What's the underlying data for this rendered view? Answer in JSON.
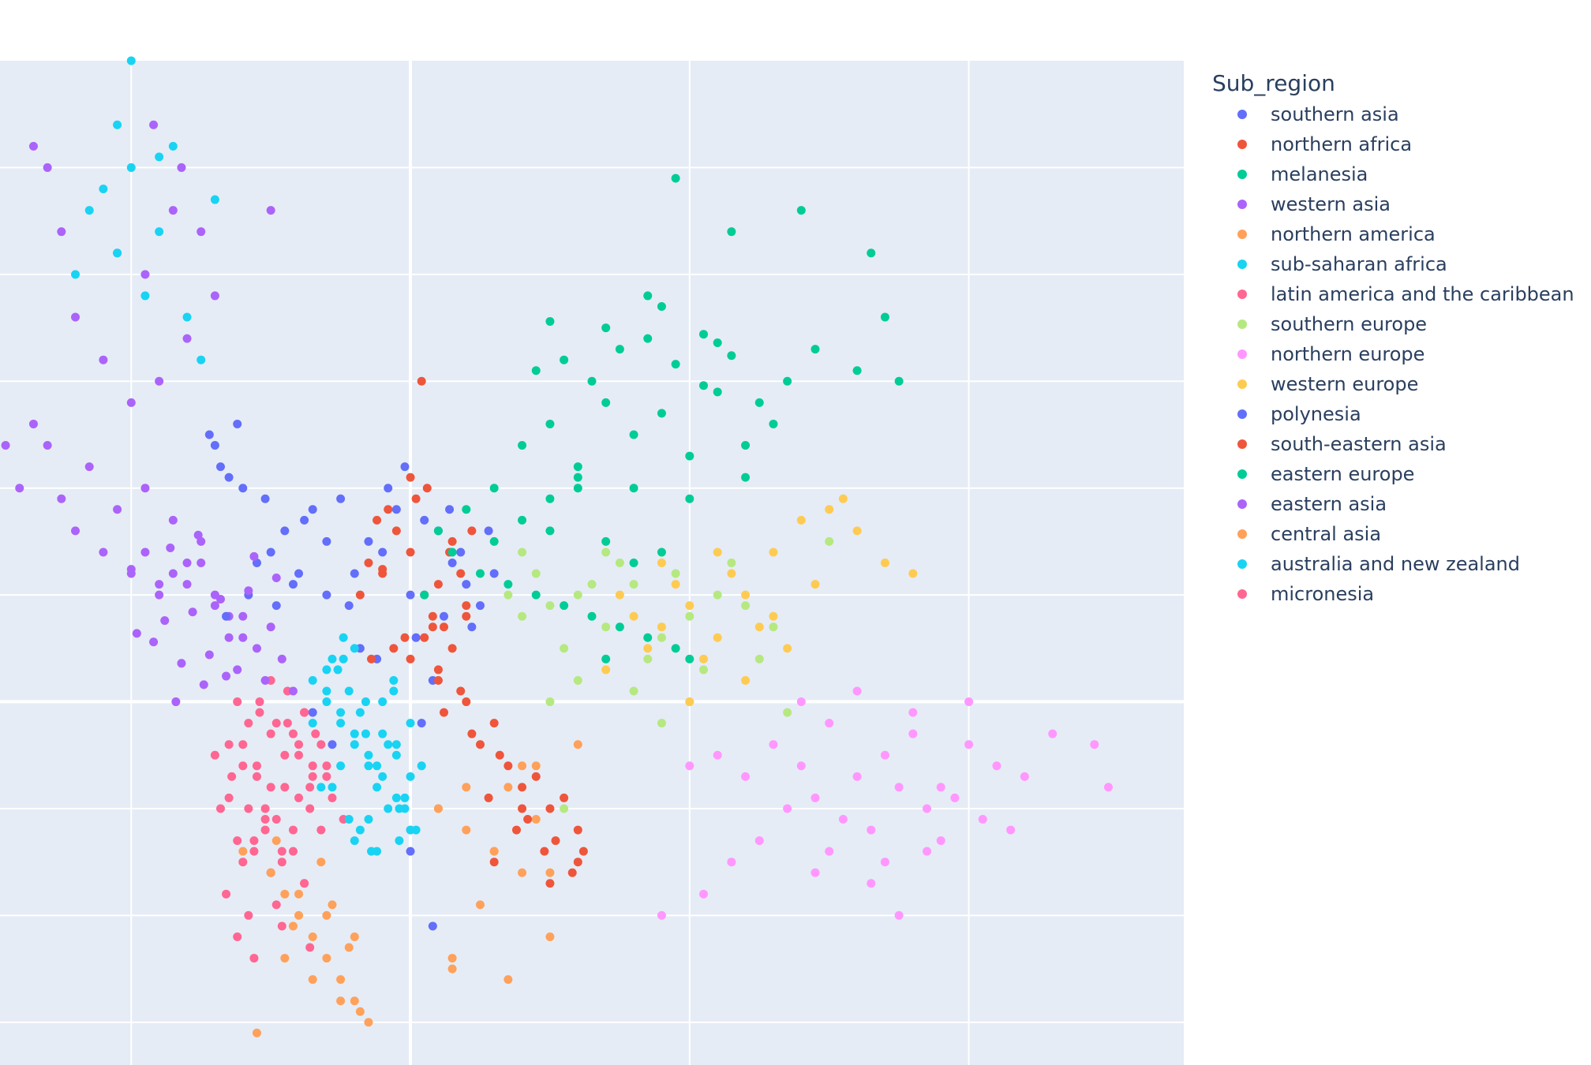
{
  "chart_data": {
    "type": "scatter",
    "title": "",
    "xlabel": "",
    "ylabel": "",
    "grid": true,
    "legend": {
      "title": "Sub_region",
      "placement": "right"
    },
    "xlim": [
      -1.47,
      2.77
    ],
    "ylim": [
      -1.7,
      3.0
    ],
    "series": [
      {
        "name": "southern asia",
        "color": "#636efa",
        "x": [
          -0.2,
          -0.1,
          0.0,
          0.1,
          -0.05,
          0.15,
          0.2,
          -0.15,
          0.05,
          0.25,
          -0.25,
          0.3,
          0.12,
          -0.08,
          0.18,
          -0.3,
          0.02,
          0.22,
          -0.12,
          0.08,
          -0.22,
          0.28,
          -0.02,
          0.14,
          -0.18,
          0.04,
          -0.35,
          -0.28,
          0.0,
          0.08
        ],
        "y": [
          0.6,
          0.7,
          0.5,
          0.8,
          0.9,
          0.65,
          0.55,
          0.75,
          0.85,
          0.45,
          0.95,
          0.6,
          0.4,
          1.0,
          0.7,
          0.5,
          0.3,
          0.35,
          0.2,
          0.1,
          0.45,
          0.8,
          1.1,
          0.9,
          0.25,
          -0.1,
          -0.05,
          -0.2,
          -0.7,
          -1.05
        ]
      },
      {
        "name": "northern africa",
        "color": "#ef553b",
        "x": [
          -0.1,
          0.0,
          0.05,
          -0.05,
          0.1,
          -0.15,
          0.15,
          0.2,
          -0.08,
          0.08,
          -0.12,
          0.12,
          0.02,
          -0.02,
          0.18,
          -0.18,
          0.06,
          -0.06,
          0.14,
          -0.14,
          0.22,
          0.0,
          0.1,
          -0.1,
          0.04
        ],
        "y": [
          0.6,
          0.7,
          0.5,
          0.8,
          0.55,
          0.65,
          0.75,
          0.45,
          0.9,
          0.4,
          0.85,
          0.35,
          0.95,
          0.3,
          0.6,
          0.5,
          1.0,
          0.25,
          0.7,
          0.2,
          0.8,
          1.05,
          0.15,
          0.62,
          1.5
        ]
      },
      {
        "name": "melanesia",
        "color": "#00cc96",
        "x": [
          0.4,
          0.5,
          0.6,
          0.7,
          0.8,
          0.9,
          1.0,
          1.1,
          1.2,
          1.3,
          0.45,
          0.55,
          0.65,
          0.75,
          0.85,
          0.95,
          1.05,
          1.15,
          1.25,
          0.6,
          0.8,
          1.0,
          1.2,
          0.7,
          0.9,
          1.1,
          0.5,
          0.85,
          1.05,
          1.35,
          1.45,
          1.6,
          1.7,
          1.75,
          1.65,
          1.4,
          0.95,
          1.15
        ],
        "y": [
          1.2,
          1.3,
          1.1,
          1.4,
          1.25,
          1.35,
          1.15,
          1.45,
          1.05,
          1.3,
          1.55,
          1.6,
          1.5,
          1.65,
          1.7,
          1.58,
          1.48,
          1.62,
          1.4,
          1.0,
          1.0,
          0.95,
          1.2,
          1.75,
          1.85,
          1.68,
          1.78,
          1.9,
          1.72,
          1.5,
          1.65,
          1.55,
          1.8,
          1.5,
          2.1,
          2.3,
          2.45,
          2.2
        ]
      },
      {
        "name": "western asia",
        "color": "#ab63fa",
        "x": [
          -1.0,
          -1.1,
          -1.2,
          -0.9,
          -0.8,
          -0.7,
          -1.05,
          -0.95,
          -0.85,
          -0.75,
          -1.15,
          -1.25,
          -1.3,
          -1.35,
          -0.65,
          -0.6,
          -1.0,
          -0.9,
          -1.1,
          -0.8,
          -1.2,
          -0.7,
          -1.4,
          -1.45,
          -0.95,
          -1.05,
          -0.85,
          -0.75,
          -1.3,
          -0.5,
          -1.35,
          -1.25,
          -0.82,
          -0.92
        ],
        "y": [
          0.6,
          0.7,
          0.8,
          0.55,
          0.65,
          0.5,
          0.9,
          1.0,
          0.85,
          0.75,
          1.1,
          0.95,
          1.2,
          1.3,
          0.4,
          0.3,
          1.4,
          1.5,
          1.6,
          1.7,
          1.8,
          1.9,
          1.0,
          1.2,
          2.0,
          2.1,
          2.3,
          2.2,
          2.5,
          2.3,
          2.6,
          2.2,
          2.5,
          2.7
        ]
      },
      {
        "name": "northern america",
        "color": "#ffa15a",
        "x": [
          -0.5,
          -0.45,
          -0.4,
          -0.35,
          -0.3,
          -0.25,
          -0.2,
          -0.15,
          -0.55,
          -0.42,
          -0.38,
          -0.28,
          -0.22,
          0.0,
          0.1,
          0.2,
          0.3,
          0.4,
          0.5,
          0.6,
          0.15,
          0.35,
          0.45,
          -0.48,
          -0.32,
          -0.18
        ],
        "y": [
          -0.8,
          -0.9,
          -1.0,
          -1.1,
          -1.2,
          -1.3,
          -1.4,
          -1.5,
          -1.55,
          -1.05,
          -0.85,
          -0.95,
          -1.15,
          -0.6,
          -0.5,
          -0.4,
          -0.7,
          -0.3,
          -0.8,
          -0.2,
          -1.25,
          -1.3,
          -0.55,
          -0.65,
          -0.75,
          -1.45
        ]
      },
      {
        "name": "sub-saharan africa",
        "color": "#19d3f3",
        "x": [
          -0.3,
          -0.25,
          -0.2,
          -0.15,
          -0.1,
          -0.05,
          0.0,
          -0.35,
          -0.28,
          -0.22,
          -0.18,
          -0.12,
          -0.08,
          -0.02,
          0.02,
          -0.3,
          -0.2,
          -0.1,
          0.0,
          -0.25,
          -0.15,
          -0.05,
          -0.32,
          -0.24,
          -0.16,
          -0.06,
          0.04,
          -0.2,
          -0.12,
          -0.04,
          -1.1,
          -1.0,
          -0.9,
          -1.15,
          -1.05,
          -0.95,
          -0.85,
          -0.8,
          -1.2,
          -1.05,
          -0.7,
          -1.0,
          -0.9,
          -0.75
        ],
        "y": [
          0.0,
          -0.1,
          -0.2,
          -0.3,
          -0.15,
          -0.25,
          -0.35,
          0.1,
          0.2,
          0.05,
          -0.05,
          -0.4,
          -0.5,
          -0.45,
          -0.6,
          0.15,
          0.25,
          0.0,
          -0.1,
          -0.3,
          -0.55,
          -0.2,
          -0.4,
          0.3,
          -0.15,
          0.05,
          -0.3,
          -0.65,
          -0.7,
          -0.5,
          2.4,
          2.5,
          2.2,
          2.3,
          2.1,
          1.9,
          2.6,
          1.8,
          2.0,
          2.7,
          2.35,
          3.0,
          2.55,
          1.6
        ]
      },
      {
        "name": "latin america and the caribbean",
        "color": "#ff6692",
        "x": [
          -0.6,
          -0.55,
          -0.5,
          -0.45,
          -0.4,
          -0.35,
          -0.3,
          -0.65,
          -0.58,
          -0.52,
          -0.48,
          -0.42,
          -0.38,
          -0.32,
          -0.62,
          -0.56,
          -0.46,
          -0.36,
          -0.7,
          -0.68,
          -0.6,
          -0.5,
          -0.4,
          -0.34,
          -0.44,
          -0.54,
          -0.64,
          -0.28,
          -0.24,
          -0.66,
          -0.58,
          -0.48,
          -0.38,
          -0.52,
          -0.42,
          -0.62,
          -0.56,
          -0.46,
          -0.36,
          -0.5
        ],
        "y": [
          -0.3,
          -0.35,
          -0.4,
          -0.25,
          -0.45,
          -0.3,
          -0.35,
          -0.2,
          -0.1,
          -0.5,
          -0.55,
          -0.15,
          -0.05,
          -0.6,
          0.0,
          -0.65,
          -0.7,
          -0.4,
          -0.25,
          -0.5,
          -0.75,
          -0.8,
          -0.2,
          -0.15,
          0.05,
          0.0,
          -0.35,
          -0.45,
          -0.55,
          -0.9,
          -1.0,
          -0.95,
          -0.85,
          -0.6,
          -0.7,
          -1.1,
          -1.2,
          -1.05,
          -1.15,
          0.1
        ]
      },
      {
        "name": "southern europe",
        "color": "#b6e880",
        "x": [
          0.4,
          0.5,
          0.6,
          0.7,
          0.8,
          0.9,
          1.0,
          1.1,
          1.2,
          1.3,
          0.45,
          0.55,
          0.65,
          0.75,
          0.85,
          0.95,
          1.05,
          1.15,
          0.35,
          0.6,
          0.8,
          1.0,
          0.7,
          0.9,
          0.5,
          1.25,
          1.35,
          1.5,
          0.4,
          0.55
        ],
        "y": [
          0.4,
          0.45,
          0.5,
          0.35,
          0.55,
          0.3,
          0.4,
          0.5,
          0.45,
          0.35,
          0.6,
          0.25,
          0.55,
          0.65,
          0.2,
          0.6,
          0.15,
          0.65,
          0.5,
          0.1,
          0.05,
          0.0,
          0.7,
          -0.1,
          0.0,
          0.2,
          -0.05,
          0.75,
          0.7,
          -0.5
        ]
      },
      {
        "name": "northern europe",
        "color": "#ff97ff",
        "x": [
          1.3,
          1.4,
          1.5,
          1.6,
          1.7,
          1.8,
          1.9,
          2.0,
          2.1,
          1.35,
          1.45,
          1.55,
          1.65,
          1.75,
          1.85,
          1.95,
          2.05,
          1.2,
          1.1,
          1.0,
          1.4,
          1.6,
          1.8,
          2.0,
          1.5,
          1.7,
          1.9,
          1.25,
          1.45,
          1.65,
          1.85,
          2.15,
          2.2,
          1.15,
          2.3,
          2.45,
          2.5,
          1.05,
          0.9,
          1.75
        ],
        "y": [
          -0.2,
          -0.3,
          -0.1,
          -0.35,
          -0.25,
          -0.15,
          -0.4,
          -0.2,
          -0.3,
          -0.5,
          -0.45,
          -0.55,
          -0.6,
          -0.4,
          -0.5,
          -0.45,
          -0.55,
          -0.35,
          -0.25,
          -0.3,
          0.0,
          0.05,
          -0.05,
          0.0,
          -0.7,
          -0.75,
          -0.65,
          -0.65,
          -0.8,
          -0.85,
          -0.7,
          -0.6,
          -0.35,
          -0.75,
          -0.15,
          -0.2,
          -0.4,
          -0.9,
          -1.0,
          -1.0
        ]
      },
      {
        "name": "western europe",
        "color": "#fecb52",
        "x": [
          0.8,
          0.9,
          1.0,
          1.1,
          1.2,
          1.3,
          0.85,
          0.95,
          1.05,
          1.15,
          1.25,
          0.75,
          0.9,
          1.1,
          1.3,
          1.0,
          1.2,
          1.4,
          1.5,
          1.6,
          1.7,
          1.8,
          1.45,
          1.55,
          0.7,
          1.35
        ],
        "y": [
          0.4,
          0.35,
          0.45,
          0.3,
          0.5,
          0.4,
          0.25,
          0.55,
          0.2,
          0.6,
          0.35,
          0.5,
          0.65,
          0.7,
          0.7,
          0.0,
          0.1,
          0.85,
          0.9,
          0.8,
          0.65,
          0.6,
          0.55,
          0.95,
          0.15,
          0.25
        ]
      },
      {
        "name": "polynesia",
        "color": "#636efa",
        "x": [
          -0.5,
          -0.45,
          -0.4,
          -0.35,
          -0.3,
          -0.55,
          -0.42,
          -0.38,
          -0.48,
          -0.52,
          -0.6,
          -0.65,
          -0.58,
          -0.7,
          -0.62,
          -0.68,
          -0.72,
          -0.66
        ],
        "y": [
          0.7,
          0.8,
          0.6,
          0.9,
          0.75,
          0.65,
          0.55,
          0.85,
          0.45,
          0.95,
          1.0,
          1.05,
          0.5,
          1.2,
          1.3,
          1.1,
          1.25,
          0.4
        ]
      },
      {
        "name": "south-eastern asia",
        "color": "#ef553b",
        "x": [
          0.0,
          0.1,
          0.2,
          0.3,
          0.05,
          0.15,
          0.25,
          0.35,
          0.4,
          0.45,
          0.5,
          0.55,
          0.6,
          0.12,
          0.22,
          0.32,
          0.42,
          0.52,
          0.62,
          0.08,
          0.18,
          0.28,
          0.38,
          0.48,
          0.58,
          0.3,
          0.4,
          0.5,
          0.6,
          0.2
        ],
        "y": [
          0.2,
          0.1,
          0.0,
          -0.1,
          0.3,
          0.25,
          -0.2,
          -0.3,
          -0.4,
          -0.35,
          -0.5,
          -0.45,
          -0.6,
          -0.05,
          -0.15,
          -0.25,
          -0.55,
          -0.65,
          -0.7,
          0.35,
          0.05,
          -0.45,
          -0.6,
          -0.7,
          -0.8,
          -0.75,
          -0.5,
          -0.85,
          -0.75,
          0.4
        ]
      },
      {
        "name": "eastern europe",
        "color": "#00cc96",
        "x": [
          0.1,
          0.2,
          0.3,
          0.4,
          0.5,
          0.6,
          0.7,
          0.8,
          0.9,
          0.15,
          0.25,
          0.35,
          0.45,
          0.55,
          0.65,
          0.75,
          0.85,
          0.95,
          1.0,
          0.05,
          0.3,
          0.5,
          0.7
        ],
        "y": [
          0.8,
          0.9,
          1.0,
          0.85,
          0.95,
          1.05,
          0.75,
          0.65,
          0.7,
          0.7,
          0.6,
          0.55,
          0.5,
          0.45,
          0.4,
          0.35,
          0.3,
          0.25,
          0.2,
          0.5,
          0.75,
          0.8,
          0.2
        ]
      },
      {
        "name": "eastern asia",
        "color": "#ab63fa",
        "x": [
          -0.9,
          -0.8,
          -0.7,
          -0.6,
          -0.5,
          -0.85,
          -0.75,
          -0.65,
          -0.55,
          -0.95,
          -0.88,
          -0.78,
          -0.68,
          -0.58,
          -0.48,
          -0.92,
          -0.82,
          -0.72,
          -0.62,
          -0.52,
          -1.0,
          -0.42,
          -0.98,
          -0.86,
          -0.76,
          -0.66,
          -0.56,
          -0.46,
          -0.84,
          -0.74
        ],
        "y": [
          0.5,
          0.55,
          0.45,
          0.4,
          0.35,
          0.6,
          0.65,
          0.3,
          0.25,
          0.7,
          0.38,
          0.42,
          0.48,
          0.52,
          0.58,
          0.28,
          0.18,
          0.22,
          0.15,
          0.1,
          0.62,
          0.05,
          0.32,
          0.72,
          0.78,
          0.12,
          0.68,
          0.2,
          0.0,
          0.08
        ]
      },
      {
        "name": "central asia",
        "color": "#ffa15a",
        "x": [
          -0.6,
          -0.5,
          -0.4,
          -0.3,
          -0.2,
          -0.45,
          -0.35,
          -0.25,
          0.1,
          0.2,
          0.3,
          0.4,
          0.5,
          0.15,
          0.25,
          0.35,
          0.45
        ],
        "y": [
          -0.7,
          -0.8,
          -0.9,
          -1.0,
          -1.1,
          -1.2,
          -1.3,
          -1.4,
          -0.5,
          -0.6,
          -0.7,
          -0.8,
          -1.1,
          -1.2,
          -0.95,
          -0.4,
          -0.3
        ]
      },
      {
        "name": "australia and new zealand",
        "color": "#19d3f3",
        "x": [
          -0.25,
          -0.2,
          -0.15,
          -0.1,
          -0.05,
          -0.3,
          -0.22,
          -0.18,
          -0.12,
          -0.08,
          -0.28,
          -0.02,
          0.0,
          -0.35,
          -0.16,
          -0.06,
          -0.26,
          -0.14,
          -0.04,
          -0.24
        ],
        "y": [
          -0.05,
          -0.15,
          -0.25,
          -0.35,
          -0.45,
          0.05,
          -0.55,
          -0.6,
          -0.3,
          -0.2,
          -0.4,
          -0.5,
          -0.6,
          -0.1,
          0.0,
          0.1,
          0.15,
          -0.7,
          -0.65,
          0.2
        ]
      },
      {
        "name": "micronesia",
        "color": "#ff6692",
        "x": [
          -0.6,
          -0.55,
          -0.5,
          -0.45,
          -0.4,
          -0.35,
          -0.65,
          -0.58,
          -0.52,
          -0.48,
          -0.42,
          -0.38,
          -0.62,
          -0.56,
          -0.46,
          -0.36,
          -0.3,
          -0.32,
          -0.44,
          -0.54
        ],
        "y": [
          -0.2,
          -0.3,
          -0.15,
          -0.4,
          -0.25,
          -0.35,
          -0.45,
          -0.5,
          -0.55,
          -0.1,
          -0.6,
          -0.05,
          -0.65,
          -0.7,
          -0.75,
          -0.5,
          -0.3,
          -0.2,
          -0.1,
          -0.05
        ]
      }
    ]
  }
}
